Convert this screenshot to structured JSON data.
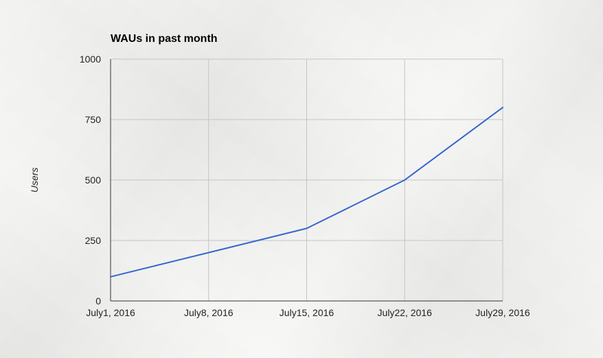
{
  "chart_data": {
    "type": "line",
    "title": "WAUs in past month",
    "xlabel": "",
    "ylabel": "Users",
    "categories": [
      "July1, 2016",
      "July8, 2016",
      "July15, 2016",
      "July22, 2016",
      "July29, 2016"
    ],
    "series": [
      {
        "values": [
          100,
          200,
          300,
          500,
          800
        ]
      }
    ],
    "ylim": [
      0,
      1000
    ],
    "yticks": [
      0,
      250,
      500,
      750,
      1000
    ],
    "grid": true,
    "legend": "none",
    "colors": {
      "line": "#3366cc",
      "grid": "#c4c4c4",
      "axis": "#333333",
      "text": "#222222"
    }
  }
}
